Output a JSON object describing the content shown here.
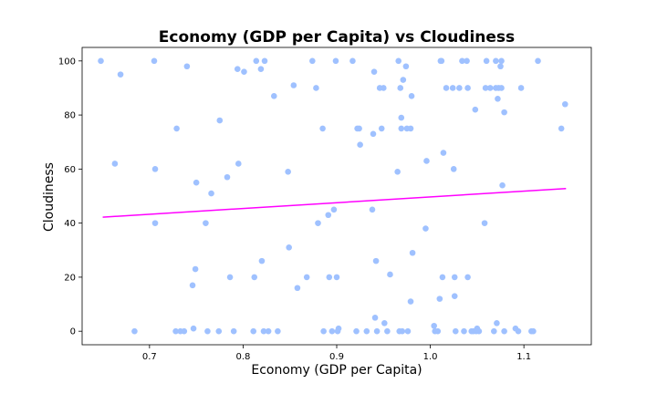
{
  "chart_data": {
    "type": "scatter",
    "title": "Economy (GDP per Capita) vs Cloudiness",
    "xlabel": "Economy (GDP per Capita)",
    "ylabel": "Cloudiness",
    "xlim": [
      0.628,
      1.172
    ],
    "ylim": [
      -5,
      105
    ],
    "x_ticks": [
      0.7,
      0.8,
      0.9,
      1.0,
      1.1
    ],
    "x_tick_labels": [
      "0.7",
      "0.8",
      "0.9",
      "1.0",
      "1.1"
    ],
    "y_ticks": [
      0,
      20,
      40,
      60,
      80,
      100
    ],
    "y_tick_labels": [
      "0",
      "20",
      "40",
      "60",
      "80",
      "100"
    ],
    "grid": false,
    "colors": {
      "points": "#9fc1ff",
      "regression": "#ff00ff"
    },
    "regression_line": {
      "x": [
        0.65,
        1.145
      ],
      "y": [
        42.2,
        52.8
      ]
    },
    "points": [
      [
        0.648,
        100
      ],
      [
        0.663,
        62
      ],
      [
        0.669,
        95
      ],
      [
        0.684,
        0
      ],
      [
        0.705,
        100
      ],
      [
        0.706,
        60
      ],
      [
        0.706,
        40
      ],
      [
        0.728,
        0
      ],
      [
        0.729,
        75
      ],
      [
        0.733,
        0
      ],
      [
        0.737,
        0
      ],
      [
        0.74,
        98
      ],
      [
        0.746,
        17
      ],
      [
        0.747,
        1
      ],
      [
        0.749,
        23
      ],
      [
        0.75,
        55
      ],
      [
        0.76,
        40
      ],
      [
        0.762,
        0
      ],
      [
        0.766,
        51
      ],
      [
        0.774,
        0
      ],
      [
        0.775,
        78
      ],
      [
        0.783,
        57
      ],
      [
        0.786,
        20
      ],
      [
        0.79,
        0
      ],
      [
        0.794,
        97
      ],
      [
        0.795,
        62
      ],
      [
        0.801,
        96
      ],
      [
        0.811,
        0
      ],
      [
        0.812,
        20
      ],
      [
        0.814,
        100
      ],
      [
        0.819,
        97
      ],
      [
        0.82,
        26
      ],
      [
        0.822,
        0
      ],
      [
        0.823,
        100
      ],
      [
        0.827,
        0
      ],
      [
        0.833,
        87
      ],
      [
        0.837,
        0
      ],
      [
        0.848,
        59
      ],
      [
        0.849,
        31
      ],
      [
        0.854,
        91
      ],
      [
        0.858,
        16
      ],
      [
        0.868,
        20
      ],
      [
        0.874,
        100
      ],
      [
        0.878,
        90
      ],
      [
        0.88,
        40
      ],
      [
        0.885,
        75
      ],
      [
        0.886,
        0
      ],
      [
        0.891,
        43
      ],
      [
        0.892,
        20
      ],
      [
        0.895,
        0
      ],
      [
        0.897,
        45
      ],
      [
        0.899,
        100
      ],
      [
        0.9,
        20
      ],
      [
        0.901,
        0
      ],
      [
        0.902,
        1
      ],
      [
        0.917,
        100
      ],
      [
        0.921,
        0
      ],
      [
        0.922,
        75
      ],
      [
        0.924,
        75
      ],
      [
        0.925,
        69
      ],
      [
        0.932,
        0
      ],
      [
        0.938,
        45
      ],
      [
        0.939,
        73
      ],
      [
        0.94,
        96
      ],
      [
        0.941,
        5
      ],
      [
        0.942,
        26
      ],
      [
        0.943,
        0
      ],
      [
        0.946,
        90
      ],
      [
        0.948,
        75
      ],
      [
        0.95,
        90
      ],
      [
        0.951,
        3
      ],
      [
        0.954,
        0
      ],
      [
        0.957,
        21
      ],
      [
        0.965,
        59
      ],
      [
        0.966,
        100
      ],
      [
        0.967,
        0
      ],
      [
        0.968,
        90
      ],
      [
        0.969,
        79
      ],
      [
        0.969,
        75
      ],
      [
        0.97,
        0
      ],
      [
        0.971,
        93
      ],
      [
        0.974,
        98
      ],
      [
        0.975,
        75
      ],
      [
        0.976,
        0
      ],
      [
        0.979,
        11
      ],
      [
        0.979,
        75
      ],
      [
        0.98,
        87
      ],
      [
        0.981,
        29
      ],
      [
        0.995,
        38
      ],
      [
        0.996,
        63
      ],
      [
        1.004,
        2
      ],
      [
        1.005,
        0
      ],
      [
        1.008,
        0
      ],
      [
        1.01,
        12
      ],
      [
        1.011,
        100
      ],
      [
        1.012,
        100
      ],
      [
        1.013,
        20
      ],
      [
        1.014,
        66
      ],
      [
        1.017,
        90
      ],
      [
        1.024,
        90
      ],
      [
        1.025,
        60
      ],
      [
        1.026,
        13
      ],
      [
        1.026,
        20
      ],
      [
        1.027,
        0
      ],
      [
        1.031,
        90
      ],
      [
        1.034,
        100
      ],
      [
        1.036,
        0
      ],
      [
        1.039,
        100
      ],
      [
        1.04,
        20
      ],
      [
        1.04,
        90
      ],
      [
        1.044,
        0
      ],
      [
        1.046,
        0
      ],
      [
        1.048,
        82
      ],
      [
        1.049,
        0
      ],
      [
        1.05,
        1
      ],
      [
        1.052,
        0
      ],
      [
        1.058,
        40
      ],
      [
        1.059,
        90
      ],
      [
        1.06,
        100
      ],
      [
        1.064,
        90
      ],
      [
        1.068,
        0
      ],
      [
        1.07,
        100
      ],
      [
        1.07,
        90
      ],
      [
        1.071,
        3
      ],
      [
        1.072,
        86
      ],
      [
        1.073,
        90
      ],
      [
        1.075,
        98
      ],
      [
        1.076,
        100
      ],
      [
        1.076,
        90
      ],
      [
        1.077,
        54
      ],
      [
        1.079,
        81
      ],
      [
        1.079,
        0
      ],
      [
        1.091,
        1
      ],
      [
        1.094,
        0
      ],
      [
        1.097,
        90
      ],
      [
        1.108,
        0
      ],
      [
        1.11,
        0
      ],
      [
        1.115,
        100
      ],
      [
        1.14,
        75
      ],
      [
        1.144,
        84
      ]
    ]
  }
}
